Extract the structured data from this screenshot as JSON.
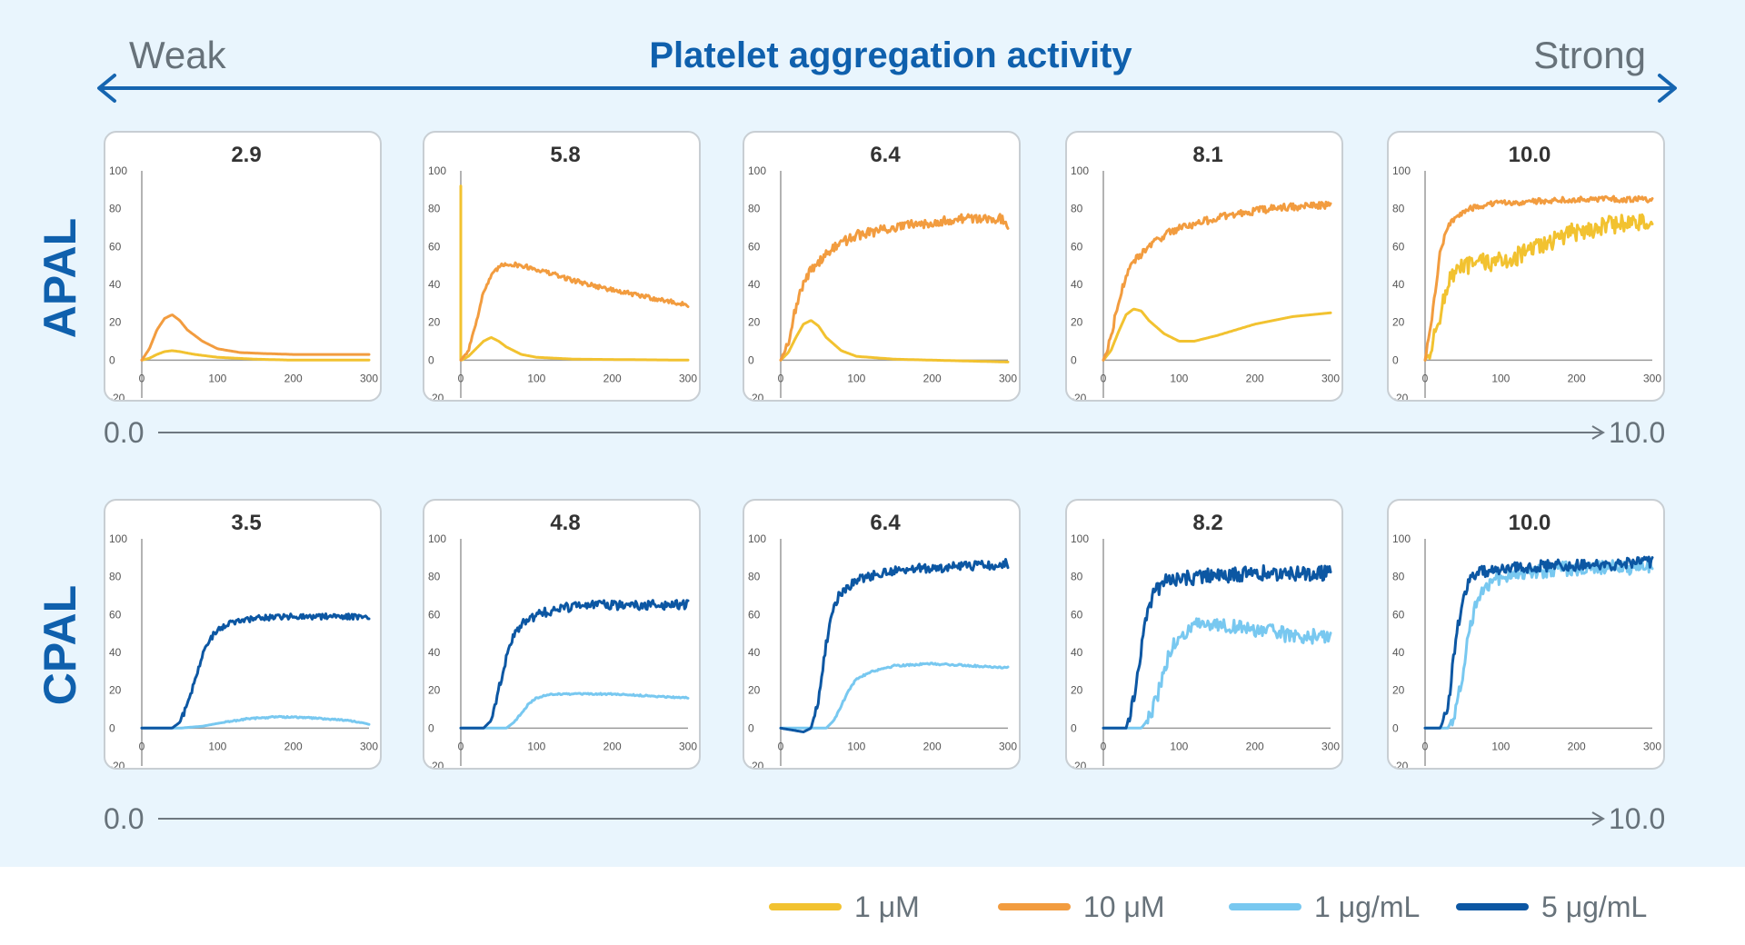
{
  "header": {
    "title": "Platelet aggregation activity",
    "weak_label": "Weak",
    "strong_label": "Strong",
    "arrow_color": "#1665b0"
  },
  "rows": [
    {
      "label": "APAL",
      "scale_min": "0.0",
      "scale_max": "10.0"
    },
    {
      "label": "CPAL",
      "scale_min": "0.0",
      "scale_max": "10.0"
    }
  ],
  "legend": [
    {
      "label": "1 μM",
      "color": "#f2c230"
    },
    {
      "label": "10 μM",
      "color": "#f29c3f"
    },
    {
      "label": "1 μg/mL",
      "color": "#78c8f0"
    },
    {
      "label": "5 μg/mL",
      "color": "#0c57a3"
    }
  ],
  "chart_data": [
    {
      "type": "line",
      "row": "APAL",
      "title": "2.9",
      "x_ticks": [
        "0",
        "100",
        "200",
        "300"
      ],
      "y_ticks": [
        "-20",
        "0",
        "20",
        "40",
        "60",
        "80",
        "100"
      ],
      "xlim": [
        0,
        300
      ],
      "ylim": [
        -20,
        100
      ],
      "series": [
        {
          "legend": "1 μM",
          "color": "#f2c230",
          "noise": 0,
          "x": [
            0,
            10,
            20,
            30,
            40,
            50,
            70,
            100,
            150,
            200,
            300
          ],
          "y": [
            0,
            1,
            3,
            4.5,
            5,
            4.5,
            3,
            1.5,
            0.5,
            0,
            0
          ]
        },
        {
          "legend": "10 μM",
          "color": "#f29c3f",
          "noise": 0,
          "x": [
            0,
            10,
            20,
            30,
            40,
            50,
            60,
            80,
            100,
            130,
            160,
            200,
            300
          ],
          "y": [
            0,
            6,
            16,
            22,
            24,
            21,
            16,
            10,
            6,
            4,
            3.5,
            3,
            3
          ]
        }
      ]
    },
    {
      "type": "line",
      "row": "APAL",
      "title": "5.8",
      "x_ticks": [
        "0",
        "100",
        "200",
        "300"
      ],
      "y_ticks": [
        "-20",
        "0",
        "20",
        "40",
        "60",
        "80",
        "100"
      ],
      "xlim": [
        0,
        300
      ],
      "ylim": [
        -20,
        100
      ],
      "series": [
        {
          "legend": "1 μM",
          "color": "#f2c230",
          "noise": 0,
          "x": [
            0,
            0,
            1,
            10,
            20,
            30,
            40,
            50,
            60,
            80,
            100,
            150,
            300
          ],
          "y": [
            92,
            0,
            0,
            2,
            6,
            10,
            12,
            10,
            7,
            3,
            1.5,
            0.5,
            0
          ]
        },
        {
          "legend": "10 μM",
          "color": "#f29c3f",
          "noise": 1.2,
          "x": [
            0,
            10,
            20,
            30,
            40,
            50,
            60,
            80,
            100,
            150,
            200,
            250,
            300
          ],
          "y": [
            0,
            5,
            20,
            36,
            44,
            49,
            51,
            50,
            48,
            42,
            37,
            33,
            29
          ]
        }
      ]
    },
    {
      "type": "line",
      "row": "APAL",
      "title": "6.4",
      "x_ticks": [
        "0",
        "100",
        "200",
        "300"
      ],
      "y_ticks": [
        "-20",
        "0",
        "20",
        "40",
        "60",
        "80",
        "100"
      ],
      "xlim": [
        0,
        300
      ],
      "ylim": [
        -20,
        100
      ],
      "series": [
        {
          "legend": "1 μM",
          "color": "#f2c230",
          "noise": 0,
          "x": [
            0,
            10,
            20,
            30,
            40,
            50,
            60,
            80,
            100,
            150,
            200,
            300
          ],
          "y": [
            0,
            4,
            12,
            19,
            21,
            18,
            12,
            5,
            2,
            0.5,
            0,
            -1
          ]
        },
        {
          "legend": "10 μM",
          "color": "#f29c3f",
          "noise": 2.5,
          "x": [
            0,
            10,
            20,
            30,
            40,
            60,
            80,
            100,
            150,
            200,
            250,
            290,
            300
          ],
          "y": [
            0,
            10,
            28,
            40,
            48,
            56,
            62,
            66,
            70,
            73,
            75,
            75,
            70
          ]
        }
      ]
    },
    {
      "type": "line",
      "row": "APAL",
      "title": "8.1",
      "x_ticks": [
        "0",
        "100",
        "200",
        "300"
      ],
      "y_ticks": [
        "-20",
        "0",
        "20",
        "40",
        "60",
        "80",
        "100"
      ],
      "xlim": [
        0,
        300
      ],
      "ylim": [
        -20,
        100
      ],
      "series": [
        {
          "legend": "1 μM",
          "color": "#f2c230",
          "noise": 0,
          "x": [
            0,
            10,
            20,
            30,
            40,
            50,
            60,
            80,
            100,
            120,
            150,
            200,
            250,
            300
          ],
          "y": [
            0,
            5,
            15,
            24,
            27,
            26,
            21,
            14,
            10,
            10,
            13,
            19,
            23,
            25
          ]
        },
        {
          "legend": "10 μM",
          "color": "#f29c3f",
          "noise": 2,
          "x": [
            0,
            10,
            20,
            30,
            40,
            60,
            80,
            100,
            150,
            200,
            250,
            300
          ],
          "y": [
            0,
            12,
            32,
            44,
            52,
            60,
            66,
            70,
            75,
            79,
            81,
            82
          ]
        }
      ]
    },
    {
      "type": "line",
      "row": "APAL",
      "title": "10.0",
      "x_ticks": [
        "0",
        "100",
        "200",
        "300"
      ],
      "y_ticks": [
        "-20",
        "0",
        "20",
        "40",
        "60",
        "80",
        "100"
      ],
      "xlim": [
        0,
        300
      ],
      "ylim": [
        -20,
        100
      ],
      "series": [
        {
          "legend": "1 μM",
          "color": "#f2c230",
          "noise": 5,
          "x": [
            0,
            10,
            20,
            30,
            40,
            60,
            80,
            100,
            130,
            160,
            200,
            250,
            300
          ],
          "y": [
            0,
            8,
            25,
            40,
            47,
            50,
            52,
            52,
            56,
            62,
            68,
            72,
            73
          ]
        },
        {
          "legend": "10 μM",
          "color": "#f29c3f",
          "noise": 1.5,
          "x": [
            0,
            10,
            20,
            30,
            40,
            60,
            80,
            100,
            150,
            200,
            250,
            300
          ],
          "y": [
            0,
            25,
            58,
            70,
            76,
            80,
            82,
            83,
            84,
            85,
            85,
            85
          ]
        }
      ]
    },
    {
      "type": "line",
      "row": "CPAL",
      "title": "3.5",
      "x_ticks": [
        "0",
        "100",
        "200",
        "300"
      ],
      "y_ticks": [
        "-20",
        "0",
        "20",
        "40",
        "60",
        "80",
        "100"
      ],
      "xlim": [
        0,
        300
      ],
      "ylim": [
        -20,
        100
      ],
      "series": [
        {
          "legend": "1 μg/mL",
          "color": "#78c8f0",
          "noise": 0.4,
          "x": [
            0,
            50,
            80,
            100,
            140,
            180,
            220,
            260,
            290,
            300
          ],
          "y": [
            0,
            0,
            1,
            2.5,
            5,
            6,
            5.5,
            4.5,
            3,
            2
          ]
        },
        {
          "legend": "5 μg/mL",
          "color": "#0c57a3",
          "noise": 1.5,
          "x": [
            0,
            40,
            50,
            60,
            70,
            80,
            90,
            100,
            120,
            150,
            200,
            250,
            300
          ],
          "y": [
            0,
            0,
            3,
            12,
            25,
            38,
            47,
            52,
            56,
            58,
            59,
            59,
            59
          ]
        }
      ]
    },
    {
      "type": "line",
      "row": "CPAL",
      "title": "4.8",
      "x_ticks": [
        "0",
        "100",
        "200",
        "300"
      ],
      "y_ticks": [
        "-20",
        "0",
        "20",
        "40",
        "60",
        "80",
        "100"
      ],
      "xlim": [
        0,
        300
      ],
      "ylim": [
        -20,
        100
      ],
      "series": [
        {
          "legend": "1 μg/mL",
          "color": "#78c8f0",
          "noise": 0.4,
          "x": [
            0,
            60,
            70,
            80,
            90,
            100,
            120,
            150,
            200,
            250,
            300
          ],
          "y": [
            0,
            0,
            3,
            8,
            13,
            16,
            18,
            18,
            18,
            17,
            16
          ]
        },
        {
          "legend": "5 μg/mL",
          "color": "#0c57a3",
          "noise": 2.5,
          "x": [
            0,
            30,
            40,
            50,
            60,
            70,
            80,
            100,
            130,
            160,
            200,
            250,
            300
          ],
          "y": [
            0,
            0,
            4,
            20,
            38,
            48,
            55,
            60,
            63,
            65,
            65,
            65,
            65
          ]
        }
      ]
    },
    {
      "type": "line",
      "row": "CPAL",
      "title": "6.4",
      "x_ticks": [
        "0",
        "100",
        "200",
        "300"
      ],
      "y_ticks": [
        "-20",
        "0",
        "20",
        "40",
        "60",
        "80",
        "100"
      ],
      "xlim": [
        0,
        300
      ],
      "ylim": [
        -20,
        100
      ],
      "series": [
        {
          "legend": "1 μg/mL",
          "color": "#78c8f0",
          "noise": 0.5,
          "x": [
            0,
            60,
            70,
            80,
            90,
            100,
            120,
            150,
            200,
            250,
            300
          ],
          "y": [
            0,
            0,
            4,
            12,
            20,
            26,
            30,
            33,
            34,
            33,
            32
          ]
        },
        {
          "legend": "5 μg/mL",
          "color": "#0c57a3",
          "noise": 2.5,
          "x": [
            0,
            30,
            40,
            50,
            60,
            70,
            80,
            100,
            130,
            170,
            220,
            270,
            300
          ],
          "y": [
            0,
            -2,
            0,
            15,
            45,
            65,
            72,
            78,
            82,
            84,
            85,
            86,
            87
          ]
        }
      ]
    },
    {
      "type": "line",
      "row": "CPAL",
      "title": "8.2",
      "x_ticks": [
        "0",
        "100",
        "200",
        "300"
      ],
      "y_ticks": [
        "-20",
        "0",
        "20",
        "40",
        "60",
        "80",
        "100"
      ],
      "xlim": [
        0,
        300
      ],
      "ylim": [
        -20,
        100
      ],
      "series": [
        {
          "legend": "1 μg/mL",
          "color": "#78c8f0",
          "noise": 4,
          "x": [
            0,
            50,
            60,
            70,
            80,
            90,
            100,
            120,
            150,
            200,
            250,
            300
          ],
          "y": [
            0,
            0,
            5,
            15,
            30,
            42,
            48,
            54,
            55,
            52,
            49,
            48
          ]
        },
        {
          "legend": "5 μg/mL",
          "color": "#0c57a3",
          "noise": 4,
          "x": [
            0,
            30,
            40,
            50,
            60,
            70,
            80,
            100,
            130,
            170,
            220,
            270,
            300
          ],
          "y": [
            0,
            0,
            15,
            42,
            65,
            73,
            77,
            79,
            80,
            81,
            82,
            82,
            82
          ]
        }
      ]
    },
    {
      "type": "line",
      "row": "CPAL",
      "title": "10.0",
      "x_ticks": [
        "0",
        "100",
        "200",
        "300"
      ],
      "y_ticks": [
        "-20",
        "0",
        "20",
        "40",
        "60",
        "80",
        "100"
      ],
      "xlim": [
        0,
        300
      ],
      "ylim": [
        -20,
        100
      ],
      "series": [
        {
          "legend": "1 μg/mL",
          "color": "#78c8f0",
          "noise": 4,
          "x": [
            0,
            30,
            40,
            50,
            60,
            70,
            80,
            100,
            130,
            170,
            220,
            270,
            300
          ],
          "y": [
            0,
            0,
            8,
            30,
            55,
            70,
            76,
            80,
            82,
            84,
            85,
            85,
            85
          ]
        },
        {
          "legend": "5 μg/mL",
          "color": "#0c57a3",
          "noise": 3,
          "x": [
            0,
            20,
            30,
            40,
            50,
            60,
            70,
            80,
            100,
            130,
            170,
            220,
            270,
            300
          ],
          "y": [
            0,
            0,
            10,
            45,
            70,
            78,
            82,
            83,
            84,
            85,
            86,
            86,
            87,
            88
          ]
        }
      ]
    }
  ]
}
